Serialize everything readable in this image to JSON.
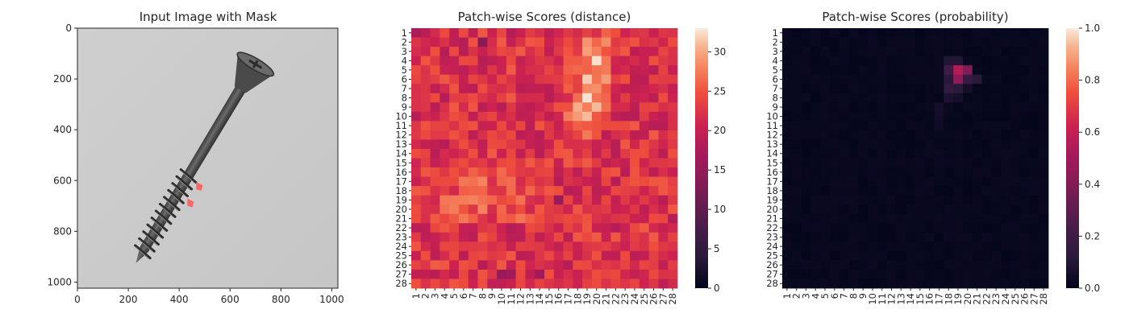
{
  "chart_data": [
    {
      "type": "image",
      "title": "Input Image with Mask",
      "xlim": [
        0,
        1024
      ],
      "ylim": [
        1024,
        0
      ],
      "xticks": [
        0,
        200,
        400,
        600,
        800,
        1000
      ],
      "yticks": [
        0,
        200,
        400,
        600,
        800,
        1000
      ],
      "image_content": "grayscale photo of a screw on a light gray background",
      "mask": {
        "color": "#ff5a5a",
        "regions": [
          {
            "x": 480,
            "y": 625
          },
          {
            "x": 445,
            "y": 690
          }
        ]
      },
      "screw": {
        "head_center": [
          695,
          150
        ],
        "tip": [
          230,
          925
        ]
      }
    },
    {
      "type": "heatmap",
      "title": "Patch-wise Scores (distance)",
      "rows": 28,
      "cols": 28,
      "ylabels": [
        "1",
        "2",
        "3",
        "4",
        "5",
        "6",
        "7",
        "8",
        "9",
        "10",
        "11",
        "12",
        "13",
        "14",
        "15",
        "16",
        "17",
        "18",
        "19",
        "20",
        "21",
        "22",
        "23",
        "24",
        "25",
        "26",
        "27",
        "28"
      ],
      "xlabels": [
        "1",
        "2",
        "3",
        "4",
        "5",
        "6",
        "7",
        "8",
        "9",
        "10",
        "11",
        "12",
        "13",
        "14",
        "15",
        "16",
        "17",
        "18",
        "19",
        "20",
        "21",
        "22",
        "23",
        "24",
        "25",
        "26",
        "27",
        "28"
      ],
      "colormap": "rocket",
      "vmin": 0,
      "vmax": 33,
      "colorbar_ticks": [
        0,
        5,
        10,
        15,
        20,
        25,
        30
      ],
      "base_value": 22,
      "high_ridge": {
        "from": [
          10,
          19
        ],
        "to": [
          3,
          20
        ],
        "peak": 31
      },
      "low_spots": [
        [
          2,
          8
        ],
        [
          1,
          1
        ],
        [
          17,
          16
        ],
        [
          19,
          16
        ],
        [
          27,
          10
        ],
        [
          27,
          11
        ],
        [
          27,
          14
        ]
      ]
    },
    {
      "type": "heatmap",
      "title": "Patch-wise Scores (probability)",
      "rows": 28,
      "cols": 28,
      "ylabels": [
        "1",
        "2",
        "3",
        "4",
        "5",
        "6",
        "7",
        "8",
        "9",
        "10",
        "11",
        "12",
        "13",
        "14",
        "15",
        "16",
        "17",
        "18",
        "19",
        "20",
        "21",
        "22",
        "23",
        "24",
        "25",
        "26",
        "27",
        "28"
      ],
      "xlabels": [
        "1",
        "2",
        "3",
        "4",
        "5",
        "6",
        "7",
        "8",
        "9",
        "10",
        "11",
        "12",
        "13",
        "14",
        "15",
        "16",
        "17",
        "18",
        "19",
        "20",
        "21",
        "22",
        "23",
        "24",
        "25",
        "26",
        "27",
        "28"
      ],
      "colormap": "rocket",
      "vmin": 0,
      "vmax": 1,
      "colorbar_ticks": [
        "0.0",
        "0.2",
        "0.4",
        "0.6",
        "0.8",
        "1.0"
      ],
      "hot_cells": [
        {
          "row": 5,
          "col": 19,
          "value": 0.55
        },
        {
          "row": 6,
          "col": 19,
          "value": 0.45
        },
        {
          "row": 5,
          "col": 20,
          "value": 0.4
        },
        {
          "row": 5,
          "col": 18,
          "value": 0.2
        },
        {
          "row": 6,
          "col": 20,
          "value": 0.18
        },
        {
          "row": 6,
          "col": 21,
          "value": 0.12
        },
        {
          "row": 6,
          "col": 18,
          "value": 0.12
        },
        {
          "row": 7,
          "col": 18,
          "value": 0.15
        },
        {
          "row": 7,
          "col": 19,
          "value": 0.12
        },
        {
          "row": 4,
          "col": 18,
          "value": 0.1
        },
        {
          "row": 4,
          "col": 19,
          "value": 0.1
        },
        {
          "row": 8,
          "col": 18,
          "value": 0.08
        },
        {
          "row": 8,
          "col": 19,
          "value": 0.06
        },
        {
          "row": 9,
          "col": 17,
          "value": 0.06
        },
        {
          "row": 10,
          "col": 17,
          "value": 0.05
        },
        {
          "row": 11,
          "col": 17,
          "value": 0.04
        },
        {
          "row": 7,
          "col": 20,
          "value": 0.06
        }
      ]
    }
  ]
}
